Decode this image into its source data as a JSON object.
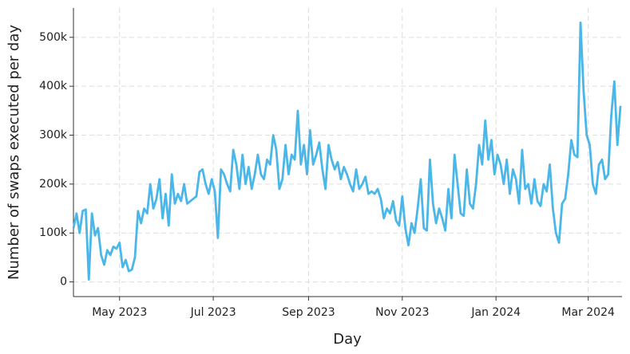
{
  "chart_data": {
    "type": "line",
    "xlabel": "Day",
    "ylabel": "Number of swaps executed per day",
    "x": [
      0,
      2,
      4,
      6,
      8,
      10,
      12,
      14,
      16,
      18,
      20,
      22,
      24,
      26,
      28,
      30,
      32,
      34,
      36,
      38,
      40,
      42,
      44,
      46,
      48,
      50,
      52,
      54,
      56,
      58,
      60,
      62,
      64,
      66,
      68,
      70,
      72,
      74,
      76,
      78,
      80,
      82,
      84,
      86,
      88,
      90,
      92,
      94,
      96,
      98,
      100,
      102,
      104,
      106,
      108,
      110,
      112,
      114,
      116,
      118,
      120,
      122,
      124,
      126,
      128,
      130,
      132,
      134,
      136,
      138,
      140,
      142,
      144,
      146,
      148,
      150,
      152,
      154,
      156,
      158,
      160,
      162,
      164,
      166,
      168,
      170,
      172,
      174,
      176,
      178,
      180,
      182,
      184,
      186,
      188,
      190,
      192,
      194,
      196,
      198,
      200,
      202,
      204,
      206,
      208,
      210,
      212,
      214,
      216,
      218,
      220,
      222,
      224,
      226,
      228,
      230,
      232,
      234,
      236,
      238,
      240,
      242,
      244,
      246,
      248,
      250,
      252,
      254,
      256,
      258,
      260,
      262,
      264,
      266,
      268,
      270,
      272,
      274,
      276,
      278,
      280,
      282,
      284,
      286,
      288,
      290,
      292,
      294,
      296,
      298,
      300,
      302,
      304,
      306,
      308,
      310,
      312,
      314,
      316,
      318,
      320,
      322,
      324,
      326,
      328,
      330,
      332,
      334,
      336,
      338,
      340,
      342,
      344,
      346,
      348,
      350,
      352,
      354,
      356
    ],
    "series": [
      {
        "name": "Swaps",
        "color": "#4bb6e8",
        "values": [
          110000,
          140000,
          100000,
          145000,
          148000,
          5000,
          140000,
          95000,
          110000,
          55000,
          35000,
          65000,
          55000,
          72000,
          68000,
          80000,
          30000,
          45000,
          22000,
          25000,
          50000,
          145000,
          120000,
          150000,
          140000,
          200000,
          150000,
          170000,
          210000,
          130000,
          180000,
          115000,
          220000,
          160000,
          180000,
          165000,
          200000,
          160000,
          165000,
          170000,
          175000,
          225000,
          230000,
          200000,
          180000,
          210000,
          185000,
          90000,
          230000,
          220000,
          200000,
          185000,
          270000,
          240000,
          190000,
          260000,
          200000,
          235000,
          190000,
          220000,
          260000,
          220000,
          210000,
          250000,
          240000,
          300000,
          270000,
          190000,
          210000,
          280000,
          220000,
          260000,
          250000,
          350000,
          240000,
          280000,
          220000,
          310000,
          240000,
          260000,
          285000,
          230000,
          190000,
          280000,
          250000,
          230000,
          245000,
          210000,
          235000,
          220000,
          200000,
          185000,
          230000,
          190000,
          200000,
          215000,
          180000,
          185000,
          180000,
          190000,
          170000,
          130000,
          150000,
          140000,
          165000,
          125000,
          115000,
          175000,
          110000,
          75000,
          120000,
          100000,
          150000,
          210000,
          110000,
          105000,
          250000,
          160000,
          120000,
          150000,
          130000,
          105000,
          190000,
          130000,
          260000,
          200000,
          140000,
          135000,
          230000,
          160000,
          150000,
          200000,
          280000,
          240000,
          330000,
          250000,
          290000,
          220000,
          260000,
          240000,
          200000,
          250000,
          180000,
          230000,
          210000,
          160000,
          270000,
          190000,
          200000,
          160000,
          210000,
          165000,
          155000,
          200000,
          185000,
          240000,
          150000,
          100000,
          80000,
          160000,
          170000,
          220000,
          290000,
          260000,
          255000,
          530000,
          390000,
          300000,
          280000,
          200000,
          180000,
          240000,
          250000,
          210000,
          220000,
          340000,
          410000,
          280000,
          360000
        ]
      }
    ],
    "xlim": [
      0,
      357
    ],
    "xticks": [
      {
        "value": 30,
        "label": "May 2023"
      },
      {
        "value": 91,
        "label": "Jul 2023"
      },
      {
        "value": 153,
        "label": "Sep 2023"
      },
      {
        "value": 214,
        "label": "Nov 2023"
      },
      {
        "value": 275,
        "label": "Jan 2024"
      },
      {
        "value": 335,
        "label": "Mar 2024"
      }
    ],
    "ylim": [
      -30000,
      560000
    ],
    "yticks": [
      0,
      {
        "value": 100000,
        "label": "100k"
      },
      {
        "value": 200000,
        "label": "200k"
      },
      {
        "value": 300000,
        "label": "300k"
      },
      {
        "value": 400000,
        "label": "400k"
      },
      {
        "value": 500000,
        "label": "500k"
      }
    ],
    "grid": true
  }
}
